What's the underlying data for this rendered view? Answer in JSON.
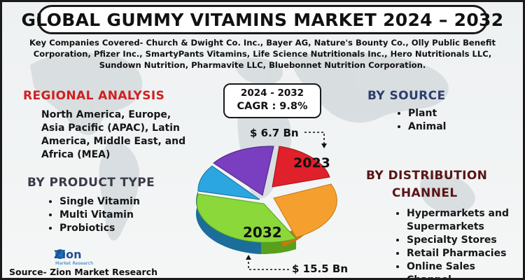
{
  "title": "GLOBAL GUMMY VITAMINS MARKET 2024 – 2032",
  "companies_line1": "Key Companies Covered- Church & Dwight Co. Inc., Bayer AG, Nature's Bounty Co., Olly Public Benefit",
  "companies_line2": "Corporation, Pfizer Inc., SmartyPants Vitamins, Life Science Nutritionals Inc., Hero Nutritionals LLC,",
  "companies_line3": "Sundown Nutrition, Pharmavite LLC, Bluebonnet Nutrition Corporation.",
  "regional": {
    "heading": "REGIONAL ANALYSIS",
    "line1": "North America, Europe,",
    "line2": "Asia Pacific (APAC), Latin",
    "line3": "America, Middle East, and",
    "line4": "Africa (MEA)"
  },
  "product_type": {
    "heading": "BY PRODUCT TYPE",
    "items": [
      "Single Vitamin",
      "Multi Vitamin",
      "Probiotics"
    ]
  },
  "source_seg": {
    "heading": "BY SOURCE",
    "items": [
      "Plant",
      "Animal"
    ]
  },
  "distribution": {
    "heading_line1": "BY DISTRIBUTION",
    "heading_line2": "CHANNEL",
    "items": [
      "Hypermarkets and",
      "Supermarkets",
      "Specialty Stores",
      "Retail Pharmacies",
      "Online Sales Channel"
    ]
  },
  "cagr": {
    "years": "2024 - 2032",
    "value": "CAGR : 9.8%"
  },
  "market_2023": "$ 6.7 Bn",
  "market_2032": "$ 15.5 Bn",
  "pie": {
    "label_2023": "2023",
    "label_2032": "2032",
    "colors": {
      "red": "#e0202a",
      "orange": "#f5a02e",
      "green": "#8ad83a",
      "blue": "#2ba6e0",
      "purple": "#7a3fc0"
    }
  },
  "logo": {
    "name": "Zion",
    "sub": "Market Research"
  },
  "source": "Source- Zion Market Research"
}
